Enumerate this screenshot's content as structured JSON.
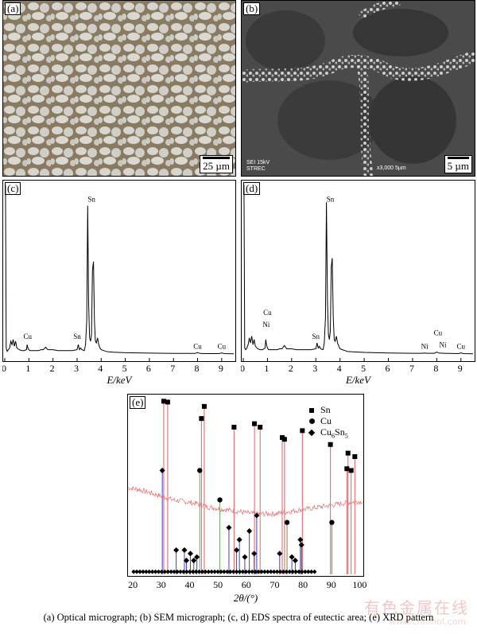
{
  "panel_a": {
    "tag": "(a)",
    "scale": "25 µm"
  },
  "panel_b": {
    "tag": "(b)",
    "scale": "5 µm",
    "sem_info": "SEI    15kV",
    "sem_org": "STREC",
    "sem_mag": "x3,000   5µm"
  },
  "chart_data": [
    {
      "type": "line",
      "panel": "(c)",
      "xlabel": "E/keV",
      "xlim": [
        0,
        9.5
      ],
      "xticks": [
        0,
        1,
        2,
        3,
        4,
        5,
        6,
        7,
        8,
        9
      ],
      "x": [
        0.0,
        0.03,
        0.06,
        0.1,
        0.15,
        0.2,
        0.25,
        0.3,
        0.35,
        0.4,
        0.45,
        0.5,
        0.6,
        0.7,
        0.8,
        0.9,
        0.93,
        0.96,
        1.0,
        1.05,
        1.1,
        1.2,
        1.3,
        1.4,
        1.5,
        1.6,
        1.7,
        1.75,
        1.8,
        1.9,
        2.0,
        2.2,
        2.4,
        2.6,
        2.8,
        3.0,
        3.05,
        3.1,
        3.15,
        3.2,
        3.3,
        3.35,
        3.4,
        3.44,
        3.48,
        3.52,
        3.56,
        3.6,
        3.64,
        3.68,
        3.72,
        3.76,
        3.8,
        3.85,
        3.9,
        3.95,
        4.0,
        4.1,
        4.2,
        4.3,
        4.5,
        5.0,
        6.0,
        7.0,
        7.9,
        8.0,
        8.1,
        8.5,
        8.9,
        9.0,
        9.1,
        9.5
      ],
      "y": [
        100,
        100,
        4,
        2,
        3,
        4,
        8,
        6,
        9,
        5,
        8,
        4,
        3,
        2.5,
        2.5,
        3,
        6,
        4,
        3,
        2.5,
        2.5,
        2.5,
        2.5,
        2.5,
        3,
        3,
        4.5,
        3.5,
        3,
        3,
        3,
        2.5,
        2.5,
        2.5,
        2.5,
        3,
        6,
        3,
        4,
        3,
        2.5,
        6,
        20,
        88,
        30,
        10,
        8,
        12,
        50,
        55,
        20,
        8,
        7,
        10,
        6,
        4,
        3,
        2.5,
        2,
        1.8,
        1.5,
        1.2,
        1.0,
        0.8,
        0.8,
        1.3,
        0.8,
        0.7,
        0.7,
        1.1,
        0.7,
        0.6
      ],
      "annotations": [
        {
          "text": "Sn",
          "x": 3.6,
          "y": 89
        },
        {
          "text": "Cu",
          "x": 0.95,
          "y": 8
        },
        {
          "text": "Sn",
          "x": 3.0,
          "y": 8
        },
        {
          "text": "Cu",
          "x": 8.0,
          "y": 2
        },
        {
          "text": "Cu",
          "x": 9.0,
          "y": 2
        }
      ]
    },
    {
      "type": "line",
      "panel": "(d)",
      "xlabel": "E/keV",
      "xlim": [
        0,
        9.5
      ],
      "xticks": [
        0,
        1,
        2,
        3,
        4,
        5,
        6,
        7,
        8,
        9
      ],
      "x": [
        0.0,
        0.03,
        0.06,
        0.1,
        0.15,
        0.2,
        0.25,
        0.3,
        0.35,
        0.4,
        0.45,
        0.5,
        0.6,
        0.7,
        0.8,
        0.9,
        0.93,
        0.96,
        1.0,
        1.05,
        1.1,
        1.2,
        1.3,
        1.4,
        1.5,
        1.6,
        1.7,
        1.75,
        1.8,
        1.9,
        2.0,
        2.2,
        2.4,
        2.6,
        2.8,
        3.0,
        3.05,
        3.1,
        3.15,
        3.2,
        3.3,
        3.35,
        3.4,
        3.44,
        3.48,
        3.52,
        3.56,
        3.6,
        3.64,
        3.68,
        3.72,
        3.76,
        3.8,
        3.85,
        3.9,
        3.95,
        4.0,
        4.1,
        4.2,
        4.3,
        4.5,
        5.0,
        6.0,
        7.0,
        7.4,
        7.5,
        7.6,
        7.9,
        8.0,
        8.1,
        8.3,
        8.5,
        8.9,
        9.0,
        9.1,
        9.5
      ],
      "y": [
        100,
        100,
        4,
        3,
        4,
        6,
        10,
        7,
        11,
        6,
        9,
        5,
        3.5,
        3,
        3,
        4,
        9,
        6,
        4,
        3,
        3,
        3,
        3,
        3,
        3.5,
        3.5,
        5.5,
        4.5,
        3.5,
        3.5,
        3.5,
        3,
        3,
        3,
        3,
        3.5,
        7,
        4,
        5,
        3.5,
        3,
        7,
        22,
        90,
        32,
        12,
        9,
        14,
        52,
        57,
        22,
        9,
        8,
        11,
        7,
        5,
        3.5,
        3,
        2.5,
        2,
        1.8,
        1.4,
        1.1,
        0.9,
        0.9,
        1.1,
        0.9,
        0.9,
        1.6,
        1.0,
        0.9,
        0.8,
        0.7,
        1.1,
        0.7,
        0.6
      ],
      "annotations": [
        {
          "text": "Sn",
          "x": 3.6,
          "y": 89
        },
        {
          "text": "Cu",
          "x": 1.0,
          "y": 22
        },
        {
          "text": "Ni",
          "x": 0.95,
          "y": 15
        },
        {
          "text": "Sn",
          "x": 3.0,
          "y": 8
        },
        {
          "text": "Ni",
          "x": 7.5,
          "y": 2
        },
        {
          "text": "Cu",
          "x": 8.05,
          "y": 10
        },
        {
          "text": "Ni",
          "x": 8.25,
          "y": 3
        },
        {
          "text": "Cu",
          "x": 9.0,
          "y": 2
        }
      ]
    },
    {
      "type": "line",
      "panel": "(e)",
      "xlabel": "2θ/(°)",
      "xlim": [
        18,
        101
      ],
      "xticks": [
        20,
        30,
        40,
        50,
        60,
        70,
        80,
        90,
        100
      ],
      "legend": [
        "Sn",
        "Cu",
        "Cu6Sn5"
      ],
      "legend_position": "top-right",
      "peaks": [
        {
          "x": 30.6,
          "y": 100,
          "marker": "Sn",
          "color": "#e06060"
        },
        {
          "x": 32.0,
          "y": 99.5,
          "marker": "Sn",
          "color": "#e06060"
        },
        {
          "x": 43.9,
          "y": 90,
          "marker": "Sn",
          "color": "#e06060"
        },
        {
          "x": 44.9,
          "y": 97,
          "marker": "Sn",
          "color": "#e06060"
        },
        {
          "x": 55.4,
          "y": 85,
          "marker": "Sn",
          "color": "#e06060"
        },
        {
          "x": 62.6,
          "y": 87,
          "marker": "Sn",
          "color": "#e06060"
        },
        {
          "x": 64.6,
          "y": 85,
          "marker": "Sn",
          "color": "#e06060"
        },
        {
          "x": 72.4,
          "y": 79,
          "marker": "Sn",
          "color": "#e06060"
        },
        {
          "x": 73.2,
          "y": 78,
          "marker": "Sn",
          "color": "#e06060"
        },
        {
          "x": 79.5,
          "y": 83,
          "marker": "Sn",
          "color": "#e06060"
        },
        {
          "x": 89.4,
          "y": 75,
          "marker": "Sn",
          "color": "#e06060"
        },
        {
          "x": 95.2,
          "y": 61,
          "marker": "Sn",
          "color": "#e06060"
        },
        {
          "x": 96.7,
          "y": 60,
          "marker": "Sn",
          "color": "#e06060"
        },
        {
          "x": 95.6,
          "y": 70,
          "marker": "Sn",
          "color": "#e06060"
        },
        {
          "x": 98.0,
          "y": 68,
          "marker": "Sn",
          "color": "#e06060"
        },
        {
          "x": 43.3,
          "y": 60,
          "marker": "Cu",
          "color": "#6aa86a"
        },
        {
          "x": 50.4,
          "y": 43,
          "marker": "Cu",
          "color": "#6aa86a"
        },
        {
          "x": 74.1,
          "y": 30,
          "marker": "Cu",
          "color": "#8a8a30"
        },
        {
          "x": 89.9,
          "y": 30,
          "marker": "Cu",
          "color": "#8a8a30"
        },
        {
          "x": 30.1,
          "y": 60,
          "marker": "Cu6Sn5",
          "color": "#4040c0"
        },
        {
          "x": 35.0,
          "y": 14,
          "marker": "Cu6Sn5",
          "color": "#4040c0"
        },
        {
          "x": 37.9,
          "y": 14,
          "marker": "Cu6Sn5",
          "color": "#4040c0"
        },
        {
          "x": 38.6,
          "y": 8,
          "marker": "Cu6Sn5",
          "color": "#4040c0"
        },
        {
          "x": 40.0,
          "y": 12,
          "marker": "Cu6Sn5",
          "color": "#4040c0"
        },
        {
          "x": 41.2,
          "y": 8,
          "marker": "Cu6Sn5",
          "color": "#4040c0"
        },
        {
          "x": 42.3,
          "y": 10,
          "marker": "Cu6Sn5",
          "color": "#4040c0"
        },
        {
          "x": 53.6,
          "y": 27,
          "marker": "Cu6Sn5",
          "color": "#4040c0"
        },
        {
          "x": 56.3,
          "y": 14,
          "marker": "Cu6Sn5",
          "color": "#4040c0"
        },
        {
          "x": 57.3,
          "y": 20,
          "marker": "Cu6Sn5",
          "color": "#4040c0"
        },
        {
          "x": 59.2,
          "y": 10,
          "marker": "Cu6Sn5",
          "color": "#4040c0"
        },
        {
          "x": 60.8,
          "y": 25,
          "marker": "Cu6Sn5",
          "color": "#4040c0"
        },
        {
          "x": 62.5,
          "y": 12,
          "marker": "Cu6Sn5",
          "color": "#4040c0"
        },
        {
          "x": 63.4,
          "y": 34,
          "marker": "Cu6Sn5",
          "color": "#4040c0"
        },
        {
          "x": 71.5,
          "y": 12,
          "marker": "Cu6Sn5",
          "color": "#4040c0"
        },
        {
          "x": 75.8,
          "y": 10,
          "marker": "Cu6Sn5",
          "color": "#4040c0"
        },
        {
          "x": 77.0,
          "y": 8,
          "marker": "Cu6Sn5",
          "color": "#4040c0"
        },
        {
          "x": 78.8,
          "y": 20,
          "marker": "Cu6Sn5",
          "color": "#4040c0"
        },
        {
          "x": 79.2,
          "y": 17,
          "marker": "Cu6Sn5",
          "color": "#4040c0"
        }
      ],
      "background_y": [
        [
          18,
          50
        ],
        [
          22,
          49
        ],
        [
          26,
          47
        ],
        [
          30,
          45
        ],
        [
          34,
          43
        ],
        [
          38,
          42
        ],
        [
          42,
          41
        ],
        [
          46,
          39
        ],
        [
          50,
          38
        ],
        [
          54,
          37
        ],
        [
          58,
          36
        ],
        [
          62,
          35
        ],
        [
          66,
          35
        ],
        [
          70,
          35
        ],
        [
          74,
          36
        ],
        [
          78,
          37
        ],
        [
          82,
          38
        ],
        [
          86,
          39
        ],
        [
          90,
          40
        ],
        [
          94,
          41
        ],
        [
          98,
          42
        ],
        [
          101,
          42
        ]
      ],
      "ylim": [
        0,
        102
      ]
    }
  ],
  "caption": "(a) Optical micrograph; (b) SEM micrograph; (c, d) EDS spectra of eutectic area; (e) XRD pattern",
  "watermark": {
    "text": "有色金属在线",
    "url": "www.cnnmol.com"
  }
}
